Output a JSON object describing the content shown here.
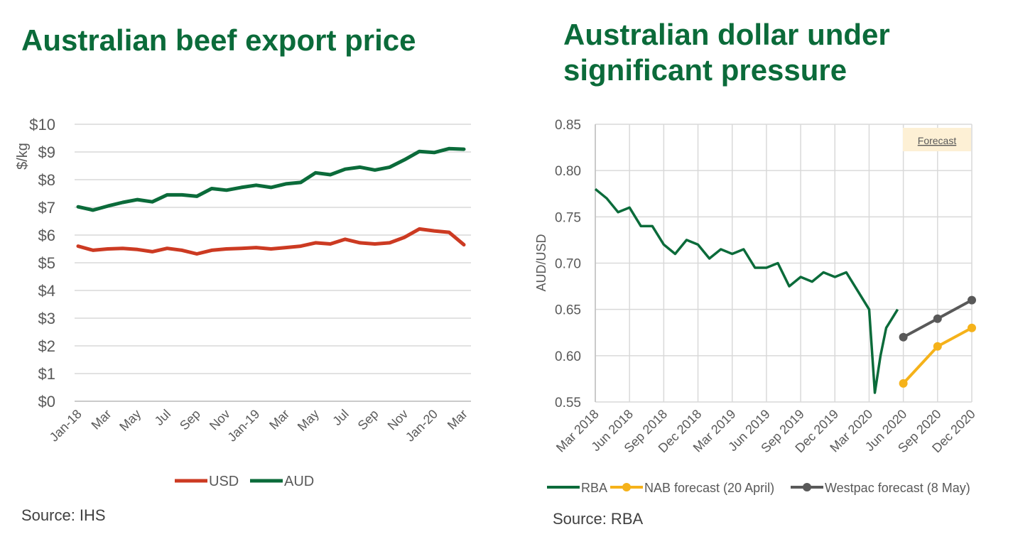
{
  "left_panel": {
    "title": "Australian beef export price",
    "source": "Source:  IHS"
  },
  "right_panel": {
    "title_line1": "Australian dollar under",
    "title_line2": "significant pressure",
    "source": "Source:  RBA"
  },
  "colors": {
    "title_green": "#0b6b3a",
    "usd": "#cc3a22",
    "aud": "#0b6b3a",
    "rba": "#0b6b3a",
    "nab": "#f5b21a",
    "westpac": "#595959",
    "forecast_box": "#fdf0d5"
  },
  "chart_data": [
    {
      "type": "line",
      "ylabel": "$/kg",
      "ylim": [
        0,
        10
      ],
      "y_ticks": [
        "$0",
        "$1",
        "$2",
        "$3",
        "$4",
        "$5",
        "$6",
        "$7",
        "$8",
        "$9",
        "$10"
      ],
      "x_tick_labels": [
        "Jan-18",
        "Mar",
        "May",
        "Jul",
        "Sep",
        "Nov",
        "Jan-19",
        "Mar",
        "May",
        "Jul",
        "Sep",
        "Nov",
        "Jan-20",
        "Mar"
      ],
      "grid": "horizontal",
      "legend_position": "bottom",
      "series": [
        {
          "name": "USD",
          "values": [
            5.6,
            5.45,
            5.5,
            5.52,
            5.48,
            5.4,
            5.52,
            5.45,
            5.32,
            5.45,
            5.5,
            5.52,
            5.55,
            5.5,
            5.55,
            5.6,
            5.72,
            5.68,
            5.85,
            5.72,
            5.68,
            5.72,
            5.92,
            6.22,
            6.15,
            6.1,
            5.65
          ]
        },
        {
          "name": "AUD",
          "values": [
            7.02,
            6.9,
            7.05,
            7.18,
            7.28,
            7.2,
            7.45,
            7.45,
            7.4,
            7.68,
            7.62,
            7.72,
            7.8,
            7.72,
            7.85,
            7.9,
            8.25,
            8.18,
            8.38,
            8.45,
            8.35,
            8.45,
            8.72,
            9.02,
            8.98,
            9.12,
            9.1
          ]
        }
      ]
    },
    {
      "type": "line",
      "ylabel": "AUD/USD",
      "ylim": [
        0.55,
        0.85
      ],
      "y_ticks": [
        "0.55",
        "0.60",
        "0.65",
        "0.70",
        "0.75",
        "0.80",
        "0.85"
      ],
      "x_tick_labels": [
        "Mar 2018",
        "Jun 2018",
        "Sep 2018",
        "Dec 2018",
        "Mar 2019",
        "Jun 2019",
        "Sep 2019",
        "Dec 2019",
        "Mar 2020",
        "Jun 2020",
        "Sep 2020",
        "Dec 2020"
      ],
      "grid": "both",
      "legend_position": "bottom",
      "annotation": "Forecast",
      "series": [
        {
          "name": "RBA",
          "x": [
            "Mar 2018",
            "Apr 2018",
            "May 2018",
            "Jun 2018",
            "Jul 2018",
            "Aug 2018",
            "Sep 2018",
            "Oct 2018",
            "Nov 2018",
            "Dec 2018",
            "Jan 2019",
            "Feb 2019",
            "Mar 2019",
            "Apr 2019",
            "May 2019",
            "Jun 2019",
            "Jul 2019",
            "Aug 2019",
            "Sep 2019",
            "Oct 2019",
            "Nov 2019",
            "Dec 2019",
            "Jan 2020",
            "Feb 2020",
            "Mar 2020",
            "Mar 2020",
            "Apr 2020",
            "Apr 2020",
            "May 2020",
            "May 2020"
          ],
          "values": [
            0.78,
            0.77,
            0.755,
            0.76,
            0.74,
            0.74,
            0.72,
            0.71,
            0.725,
            0.72,
            0.705,
            0.715,
            0.71,
            0.715,
            0.695,
            0.695,
            0.7,
            0.675,
            0.685,
            0.68,
            0.69,
            0.685,
            0.69,
            0.67,
            0.65,
            0.56,
            0.6,
            0.63,
            0.64,
            0.65
          ]
        },
        {
          "name": "NAB forecast (20 April)",
          "x": [
            "Jun 2020",
            "Sep 2020",
            "Dec 2020"
          ],
          "values": [
            0.57,
            0.61,
            0.63
          ]
        },
        {
          "name": "Westpac forecast (8 May)",
          "x": [
            "Jun 2020",
            "Sep 2020",
            "Dec 2020"
          ],
          "values": [
            0.62,
            0.64,
            0.66
          ]
        }
      ]
    }
  ]
}
